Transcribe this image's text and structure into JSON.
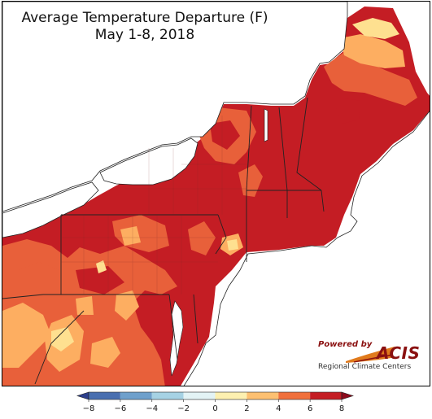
{
  "title": {
    "line1": "Average Temperature Departure (F)",
    "line2": "May 1-8, 2018"
  },
  "logo": {
    "powered_by": "Powered by",
    "name": "ACIS",
    "subtitle": "Regional Climate Centers"
  },
  "legend": {
    "ticks": [
      "−8",
      "−6",
      "−4",
      "−2",
      "0",
      "2",
      "4",
      "6",
      "8"
    ],
    "bins": [
      {
        "range": [
          -8,
          -6
        ],
        "color": "#4a6fb0"
      },
      {
        "range": [
          -6,
          -4
        ],
        "color": "#6fa0cc"
      },
      {
        "range": [
          -4,
          -2
        ],
        "color": "#a6d2e4"
      },
      {
        "range": [
          -2,
          0
        ],
        "color": "#e3f3f5"
      },
      {
        "range": [
          0,
          2
        ],
        "color": "#fdf0b0"
      },
      {
        "range": [
          2,
          4
        ],
        "color": "#fdc071"
      },
      {
        "range": [
          4,
          6
        ],
        "color": "#f0703c"
      },
      {
        "range": [
          6,
          8
        ],
        "color": "#c41d24"
      }
    ],
    "extend_low_color": "#2c3e8c",
    "extend_high_color": "#8c0a1c"
  },
  "colors": {
    "dark_red": "#c41d24",
    "red_orange": "#e8603a",
    "orange": "#fdae61",
    "light_yellow": "#fee090",
    "water": "#ffffff"
  }
}
